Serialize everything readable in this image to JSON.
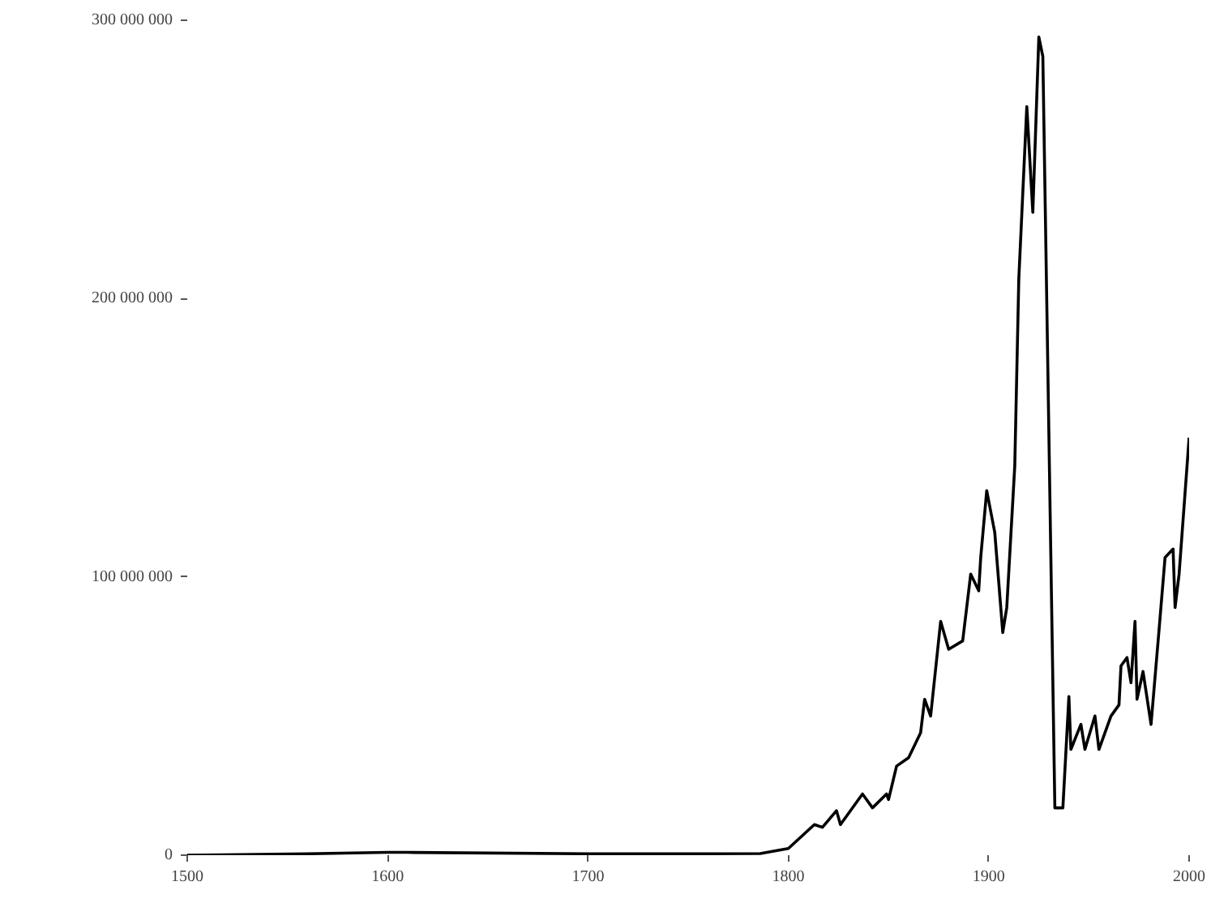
{
  "chart_data": {
    "type": "line",
    "x": [
      1500,
      1560,
      1600,
      1610,
      1700,
      1750,
      1786,
      1800,
      1813,
      1817,
      1824,
      1826,
      1837,
      1842,
      1849,
      1850,
      1854,
      1860,
      1866,
      1868,
      1871,
      1876,
      1880,
      1887,
      1891,
      1895,
      1896,
      1899,
      1903,
      1907,
      1909,
      1913,
      1915,
      1919,
      1922,
      1925,
      1927,
      1933,
      1937,
      1940,
      1941,
      1946,
      1948,
      1953,
      1955,
      1961,
      1965,
      1966,
      1969,
      1971,
      1973,
      1974,
      1977,
      1981,
      1985,
      1988,
      1992,
      1993,
      1995,
      2000
    ],
    "series": [
      {
        "color": "#000000",
        "values": [
          0,
          500000,
          1000000,
          1000000,
          500000,
          500000,
          600000,
          2400000,
          11000000,
          10000000,
          16000000,
          11000000,
          22000000,
          17000000,
          22000000,
          20000000,
          32000000,
          35000000,
          44000000,
          56000000,
          50000000,
          84000000,
          74000000,
          77000000,
          101000000,
          95000000,
          107000000,
          131000000,
          116000000,
          80000000,
          89000000,
          140000000,
          207000000,
          269000000,
          231000000,
          294000000,
          287000000,
          17000000,
          17000000,
          57000000,
          38000000,
          47000000,
          38000000,
          50000000,
          38000000,
          50000000,
          54000000,
          68000000,
          71000000,
          62000000,
          84000000,
          56000000,
          66000000,
          47000000,
          81000000,
          107000000,
          110000000,
          89000000,
          101000000,
          150000000
        ]
      }
    ],
    "xlim": [
      1500,
      2000
    ],
    "xticks": [
      1500,
      1600,
      1700,
      1800,
      1900,
      2000
    ],
    "ylim": [
      0,
      300000000
    ],
    "yticks": [
      0,
      {
        "value": 100000000,
        "label": "100 000 000"
      },
      {
        "value": 200000000,
        "label": "200 000 000"
      },
      {
        "value": 300000000,
        "label": "300 000 000"
      }
    ],
    "grid": false,
    "marker": "none",
    "line_style": "solid"
  }
}
